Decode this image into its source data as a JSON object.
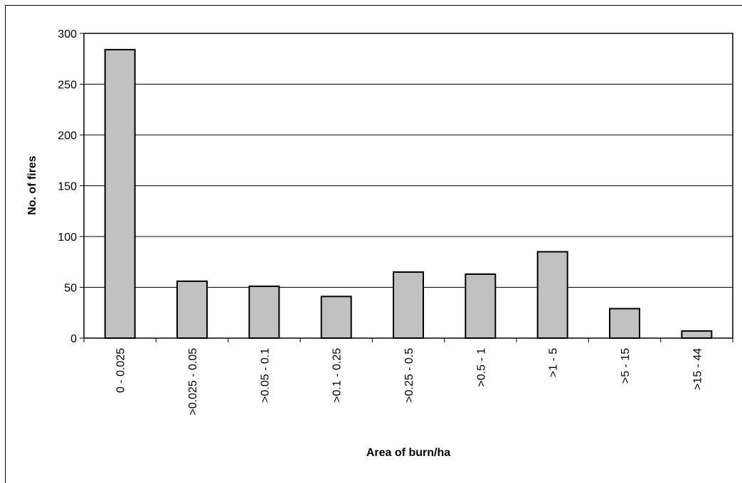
{
  "chart_data": {
    "type": "bar",
    "categories": [
      "0 - 0.025",
      ">0.025 - 0.05",
      ">0.05 - 0.1",
      ">0.1 - 0.25",
      ">0.25 - 0.5",
      ">0.5 - 1",
      ">1 - 5",
      ">5 - 15",
      ">15 - 44"
    ],
    "values": [
      284,
      56,
      51,
      41,
      65,
      63,
      85,
      29,
      7
    ],
    "title": "",
    "xlabel": "Area of burn/ha",
    "ylabel": "No. of fires",
    "ylim": [
      0,
      300
    ],
    "yticks": [
      0,
      50,
      100,
      150,
      200,
      250,
      300
    ],
    "grid": true,
    "legend": "none",
    "colors": {
      "bar_fill": "#c0c0c0",
      "bar_stroke": "#000000",
      "grid": "#000000"
    }
  }
}
